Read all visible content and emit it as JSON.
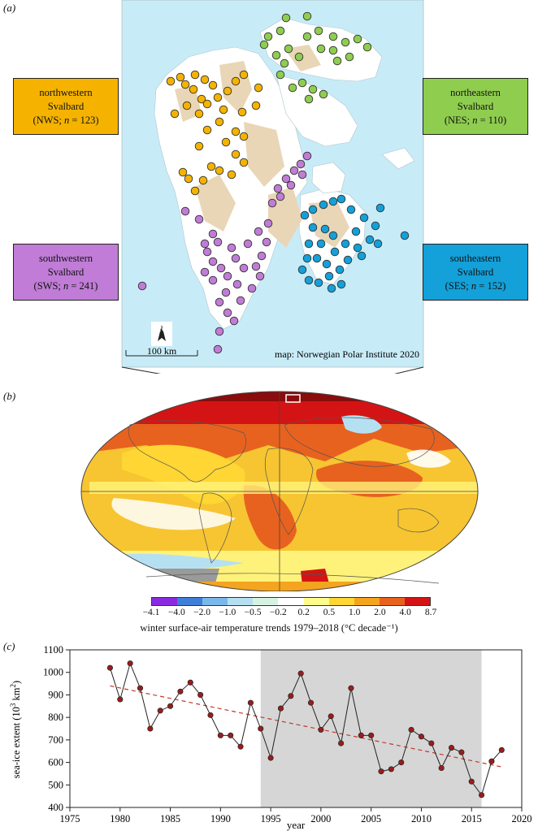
{
  "panels": {
    "a": "(a)",
    "b": "(b)",
    "c": "(c)"
  },
  "regions": [
    {
      "key": "nw",
      "line1": "northwestern",
      "line2": "Svalbard",
      "line3_pre": "(NWS; ",
      "n_label": "n",
      "line3_post": " = 123)",
      "color": "#f5b300"
    },
    {
      "key": "ne",
      "line1": "northeastern",
      "line2": "Svalbard",
      "line3_pre": "(NES; ",
      "n_label": "n",
      "line3_post": " = 110)",
      "color": "#8fcd4f"
    },
    {
      "key": "sw",
      "line1": "southwestern",
      "line2": "Svalbard",
      "line3_pre": "(SWS; ",
      "n_label": "n",
      "line3_post": " = 241)",
      "color": "#c07cd6"
    },
    {
      "key": "se",
      "line1": "southeastern",
      "line2": "Svalbard",
      "line3_pre": "(SES; ",
      "n_label": "n",
      "line3_post": " = 152)",
      "color": "#14a0d8"
    }
  ],
  "map": {
    "scale_label": "100 km",
    "north_label": "N",
    "credit": "map: Norwegian Polar Institute 2020",
    "colors": {
      "sea": "#c8ecf7",
      "land": "#ffffff",
      "glacier_free": "#e9d6b7"
    }
  },
  "colorbar": {
    "ticks": [
      "−4.1",
      "−4.0",
      "−2.0",
      "−1.0",
      "−0.5",
      "−0.2",
      "0.2",
      "0.5",
      "1.0",
      "2.0",
      "4.0",
      "8.7"
    ],
    "colors": [
      "#8a2be2",
      "#3f7fd9",
      "#7ab8ea",
      "#b5e0f2",
      "#d5f3e0",
      "#ffffff",
      "#fffb8a",
      "#ffd633",
      "#f5a41f",
      "#e8621f",
      "#d41414",
      "#7a0a0a"
    ],
    "title": "winter surface-air temperature trends 1979–2018 (°C decade⁻¹)"
  },
  "chart_data": {
    "type": "line",
    "x": [
      1979,
      1980,
      1981,
      1982,
      1983,
      1984,
      1985,
      1986,
      1987,
      1988,
      1989,
      1990,
      1991,
      1992,
      1993,
      1994,
      1995,
      1996,
      1997,
      1998,
      1999,
      2000,
      2001,
      2002,
      2003,
      2004,
      2005,
      2006,
      2007,
      2008,
      2009,
      2010,
      2011,
      2012,
      2013,
      2014,
      2015,
      2016,
      2017,
      2018
    ],
    "y": [
      1020,
      880,
      1040,
      930,
      750,
      830,
      850,
      915,
      955,
      900,
      810,
      720,
      720,
      670,
      865,
      750,
      620,
      840,
      895,
      995,
      865,
      745,
      805,
      685,
      930,
      720,
      720,
      560,
      570,
      600,
      745,
      715,
      685,
      575,
      665,
      645,
      515,
      455,
      605,
      655
    ],
    "trend": {
      "x": [
        1979,
        2018
      ],
      "y": [
        940,
        580
      ]
    },
    "shaded_range": [
      1994,
      2016
    ],
    "xlim": [
      1975,
      2020
    ],
    "ylim": [
      400,
      1100
    ],
    "xticks": [
      1975,
      1980,
      1985,
      1990,
      1995,
      2000,
      2005,
      2010,
      2015,
      2020
    ],
    "yticks": [
      400,
      500,
      600,
      700,
      800,
      900,
      1000,
      1100
    ],
    "xlabel": "year",
    "ylabel_pre": "sea-ice extent (10",
    "ylabel_sup1": "3",
    "ylabel_mid": " km",
    "ylabel_sup2": "2",
    "ylabel_post": ")",
    "colors": {
      "line": "#222222",
      "marker": "#9b1c1c",
      "trend": "#c0392b",
      "shade": "#d6d6d6"
    }
  }
}
